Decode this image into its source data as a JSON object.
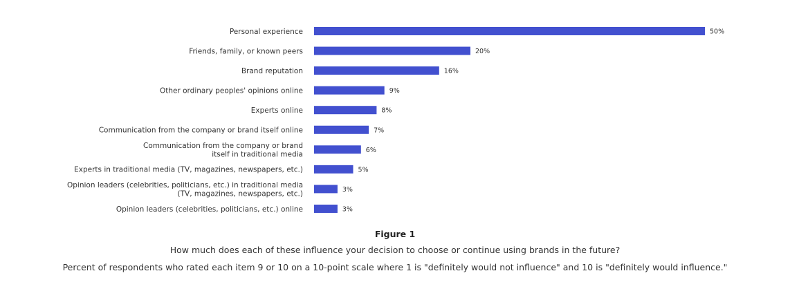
{
  "chart_data": {
    "type": "bar",
    "orientation": "horizontal",
    "categories": [
      [
        "Personal experience"
      ],
      [
        "Friends, family, or known peers"
      ],
      [
        "Brand reputation"
      ],
      [
        "Other ordinary peoples' opinions online"
      ],
      [
        "Experts online"
      ],
      [
        "Communication from the company or brand itself online"
      ],
      [
        "Communication from the company or brand",
        "itself in traditional media"
      ],
      [
        "Experts in traditional media (TV, magazines, newspapers, etc.)"
      ],
      [
        "Opinion leaders (celebrities, politicians, etc.) in traditional media",
        "(TV, magazines, newspapers, etc.)"
      ],
      [
        "Opinion leaders (celebrities, politicians, etc.) online"
      ]
    ],
    "values": [
      50,
      20,
      16,
      9,
      8,
      7,
      6,
      5,
      3,
      3
    ],
    "value_labels": [
      "50%",
      "20%",
      "16%",
      "9%",
      "8%",
      "7%",
      "6%",
      "5%",
      "3%",
      "3%"
    ],
    "unit": "%",
    "xlim": [
      0,
      50
    ],
    "grid": false,
    "legend": "none",
    "bar_color": "#4250cf"
  },
  "figure": {
    "title": "Figure 1",
    "question": "How much does each of these influence your decision to choose or continue using brands in the future?",
    "note": "Percent of respondents who rated each item 9 or 10 on a 10-point scale where 1 is \"definitely would not influence\" and 10 is \"definitely would influence.\""
  }
}
